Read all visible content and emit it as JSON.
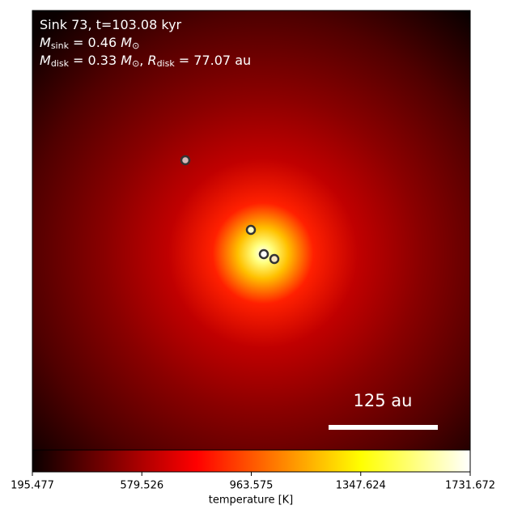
{
  "chart_data": {
    "type": "heatmap",
    "annotation_lines": [
      [
        "Sink 73, t=103.08 kyr"
      ],
      [
        "M",
        "sink",
        " = 0.46 ",
        "M",
        "⊙"
      ],
      [
        "M",
        "disk",
        " = 0.33 ",
        "M",
        "⊙",
        ", ",
        "R",
        "disk",
        " = 77.07 au"
      ]
    ],
    "scale_bar_label": "125 au",
    "colorbar": {
      "label": "temperature [K]",
      "clim": [
        195.477,
        1731.672
      ],
      "ticks": [
        195.477,
        579.526,
        963.575,
        1347.624,
        1731.672
      ],
      "colormap": "hot"
    }
  }
}
